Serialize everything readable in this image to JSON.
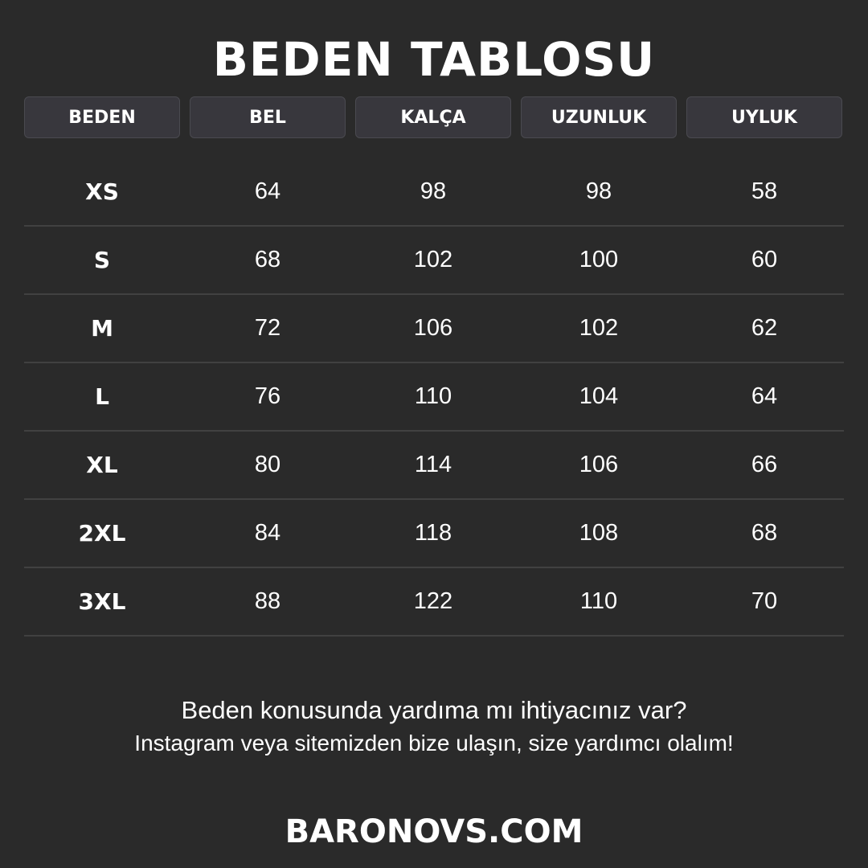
{
  "title": "BEDEN TABLOSU",
  "headers": [
    "BEDEN",
    "BEL",
    "KALÇA",
    "UZUNLUK",
    "UYLUK"
  ],
  "rows": [
    [
      "XS",
      "64",
      "98",
      "98",
      "58"
    ],
    [
      "S",
      "68",
      "102",
      "100",
      "60"
    ],
    [
      "M",
      "72",
      "106",
      "102",
      "62"
    ],
    [
      "L",
      "76",
      "110",
      "104",
      "64"
    ],
    [
      "XL",
      "80",
      "114",
      "106",
      "66"
    ],
    [
      "2XL",
      "84",
      "118",
      "108",
      "68"
    ],
    [
      "3XL",
      "88",
      "122",
      "110",
      "70"
    ]
  ],
  "help_line1": "Beden konusunda yardıma mı ihtiyacınız var?",
  "help_line2": "Instagram veya sitemizden bize ulaşın, size yardımcı olalım!",
  "website": "BARONOVS.COM",
  "colors": {
    "background": "#2a2a2a",
    "header_bg": "#38373d",
    "text": "#ffffff"
  }
}
